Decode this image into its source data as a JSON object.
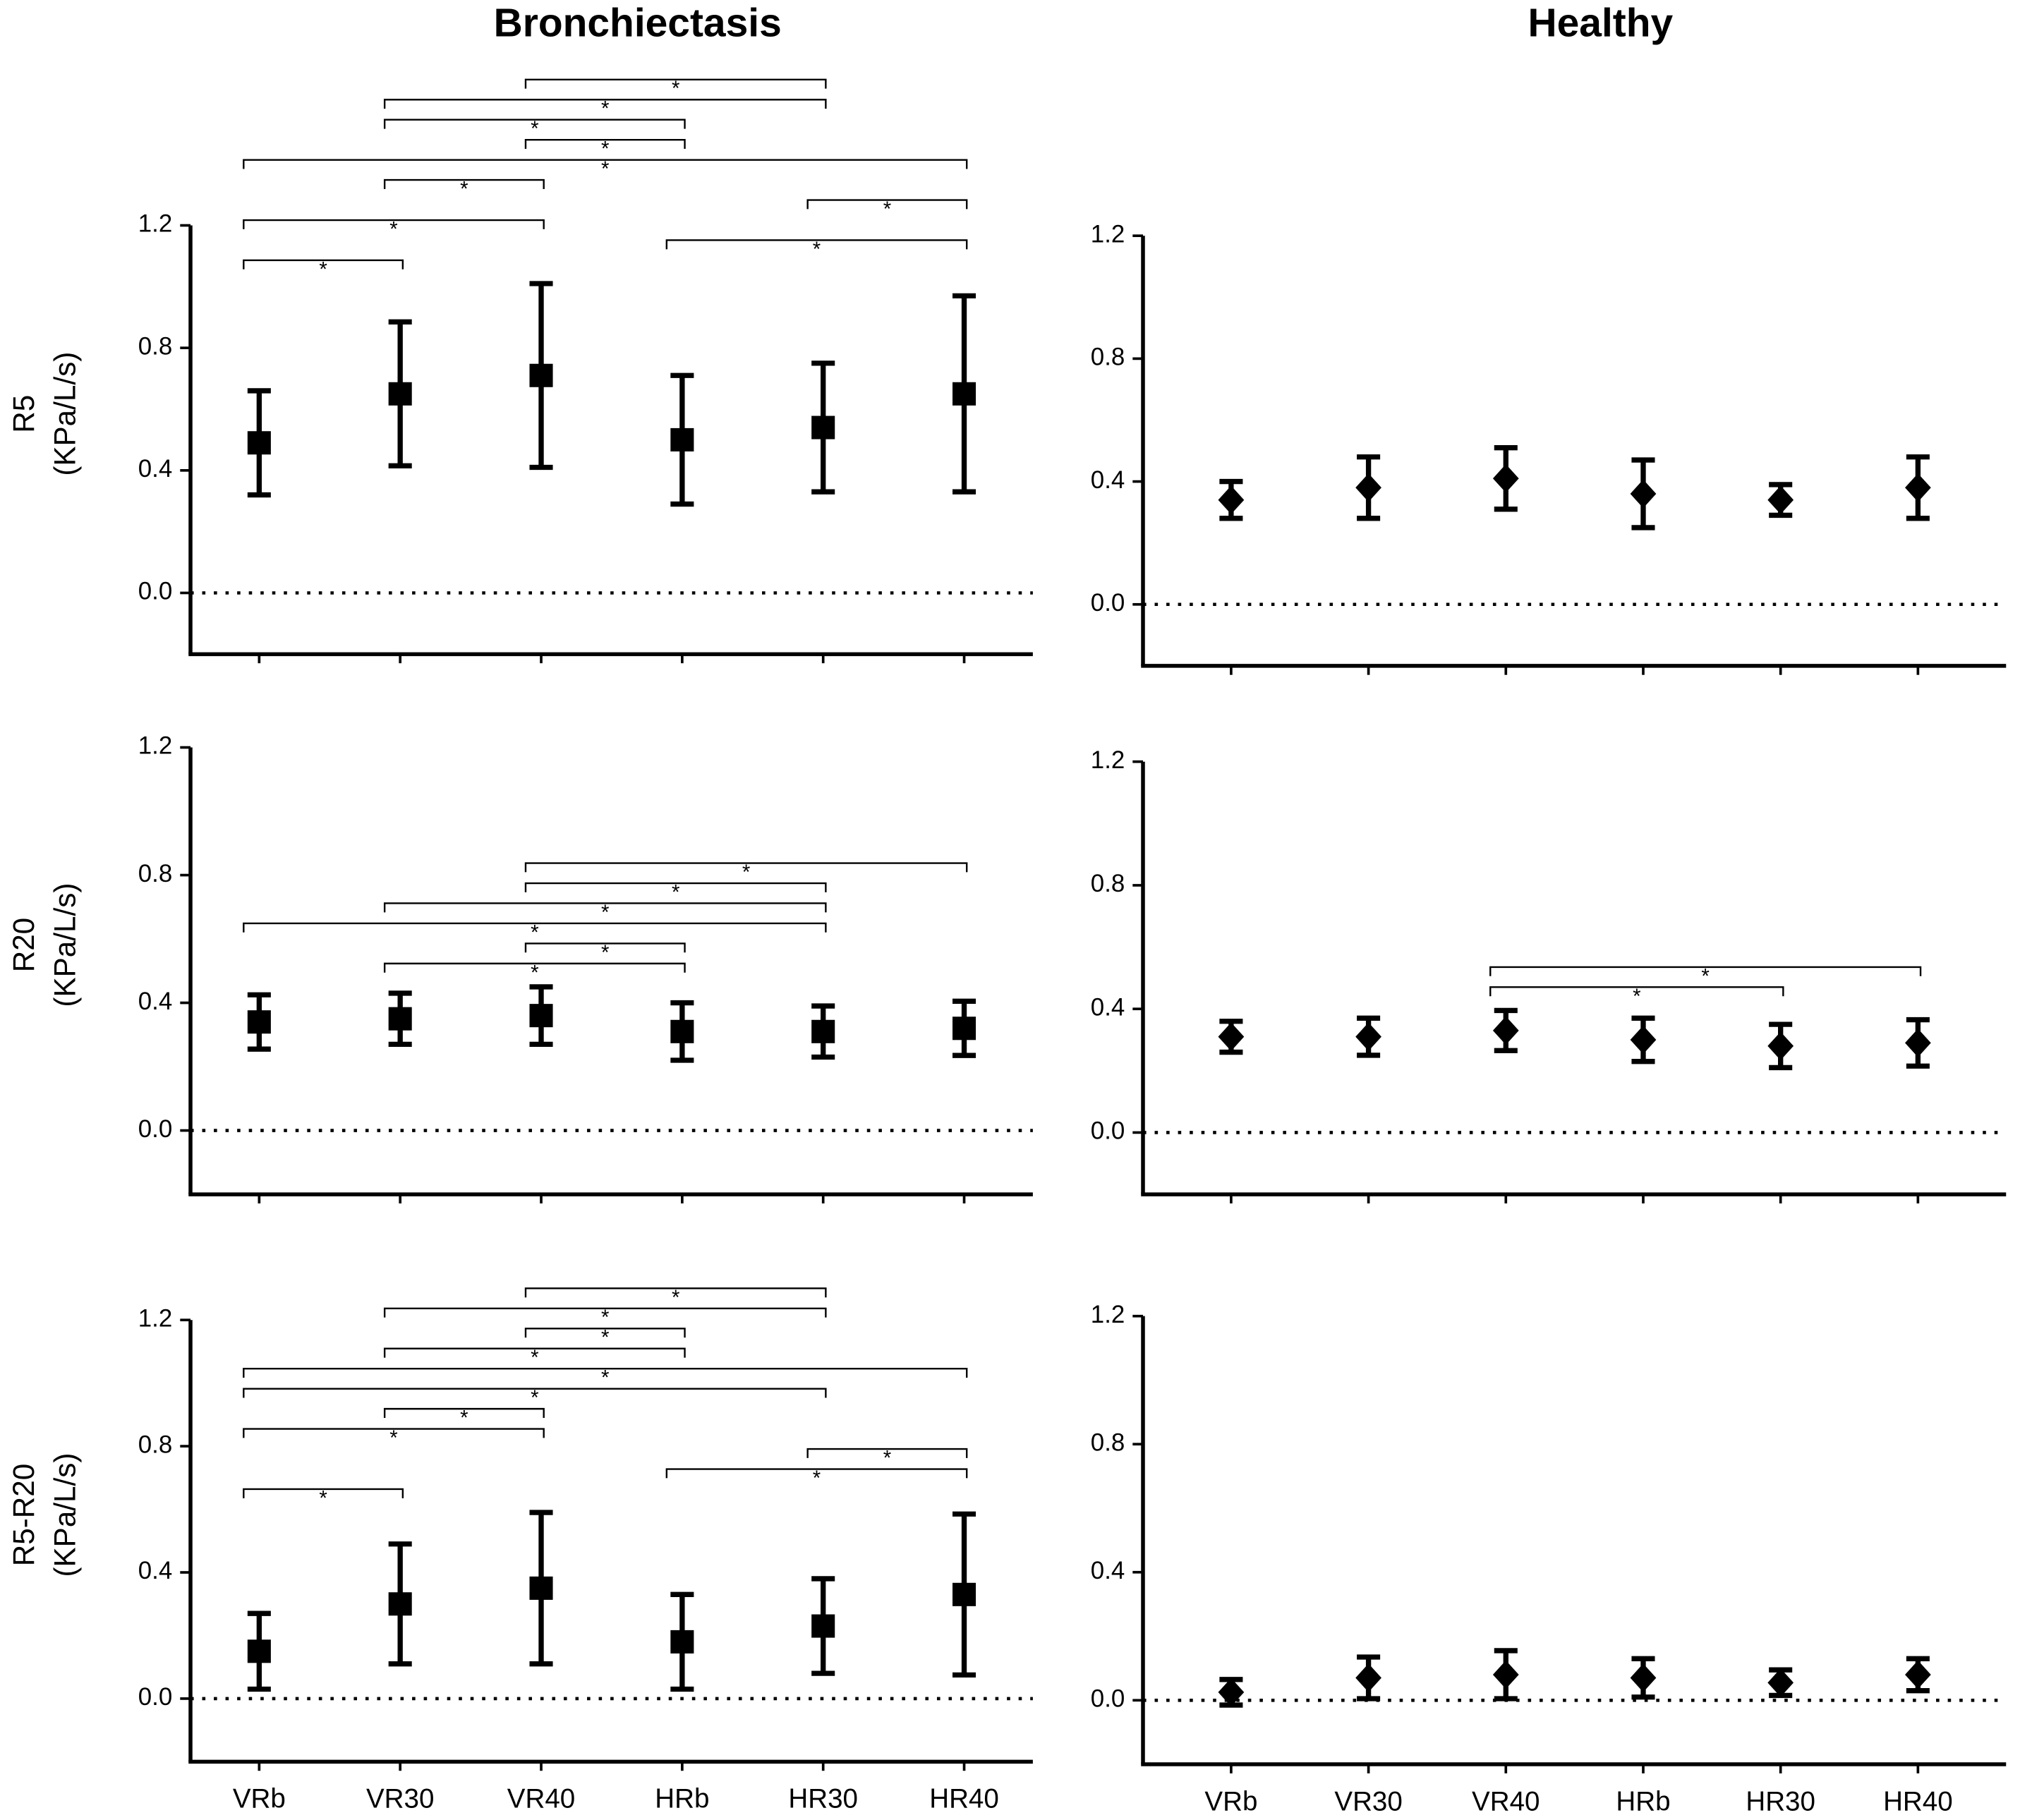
{
  "chart_data": [
    {
      "type": "errorbar",
      "title": "Bronchiectasis",
      "ylabel": [
        "R5",
        "(KPa/L/s)"
      ],
      "marker": "square",
      "color": "#000000",
      "zero_line": "dotted",
      "categories": [
        null,
        null,
        null,
        null,
        null,
        null
      ],
      "values": [
        0.49,
        0.65,
        0.71,
        0.5,
        0.54,
        0.65
      ],
      "errors": [
        0.17,
        0.235,
        0.3,
        0.21,
        0.21,
        0.32
      ],
      "ylim": [
        -0.2,
        1.2
      ],
      "yticks": [
        {
          "value": 0,
          "label": "0.0"
        },
        0.4,
        0.8,
        1.2
      ],
      "brackets": [
        {
          "between": [
            0,
            1
          ],
          "label": "*"
        },
        {
          "between": [
            3,
            5
          ],
          "label": "*"
        },
        {
          "between": [
            0,
            2
          ],
          "label": "*"
        },
        {
          "between": [
            4,
            5
          ],
          "label": "*"
        },
        {
          "between": [
            1,
            2
          ],
          "label": "*"
        },
        {
          "between": [
            0,
            5
          ],
          "label": "*"
        },
        {
          "between": [
            2,
            3
          ],
          "label": "*"
        },
        {
          "between": [
            1,
            3
          ],
          "label": "*"
        },
        {
          "between": [
            1,
            4
          ],
          "label": "*"
        },
        {
          "between": [
            2,
            4
          ],
          "label": "*"
        }
      ]
    },
    {
      "type": "errorbar",
      "title": "Healthy",
      "marker": "diamond",
      "color": "#000000",
      "zero_line": "dotted",
      "categories": [
        null,
        null,
        null,
        null,
        null,
        null
      ],
      "values": [
        0.34,
        0.38,
        0.41,
        0.36,
        0.34,
        0.38
      ],
      "errors": [
        0.06,
        0.1,
        0.1,
        0.11,
        0.05,
        0.1
      ],
      "ylim": [
        -0.2,
        1.2
      ],
      "yticks": [
        {
          "value": 0,
          "label": "0.0"
        },
        0.4,
        0.8,
        1.2
      ]
    },
    {
      "type": "errorbar",
      "ylabel": [
        "R20",
        "(KPa/L/s)"
      ],
      "marker": "square",
      "color": "#000000",
      "zero_line": "dotted",
      "categories": [
        null,
        null,
        null,
        null,
        null,
        null
      ],
      "values": [
        0.34,
        0.35,
        0.36,
        0.31,
        0.31,
        0.32
      ],
      "errors": [
        0.085,
        0.08,
        0.09,
        0.09,
        0.08,
        0.085
      ],
      "ylim": [
        -0.2,
        1.2
      ],
      "yticks": [
        {
          "value": 0,
          "label": "0.0"
        },
        0.4,
        0.8,
        1.2
      ],
      "brackets": [
        {
          "between": [
            1,
            3
          ],
          "label": "*"
        },
        {
          "between": [
            2,
            3
          ],
          "label": "*"
        },
        {
          "between": [
            0,
            4
          ],
          "label": "*"
        },
        {
          "between": [
            1,
            4
          ],
          "label": "*"
        },
        {
          "between": [
            2,
            4
          ],
          "label": "*"
        },
        {
          "between": [
            2,
            5
          ],
          "label": "*"
        }
      ]
    },
    {
      "type": "errorbar",
      "marker": "diamond",
      "color": "#000000",
      "zero_line": "dotted",
      "categories": [
        null,
        null,
        null,
        null,
        null,
        null
      ],
      "values": [
        0.31,
        0.31,
        0.33,
        0.3,
        0.28,
        0.29
      ],
      "errors": [
        0.05,
        0.06,
        0.065,
        0.07,
        0.07,
        0.075
      ],
      "ylim": [
        -0.2,
        1.2
      ],
      "yticks": [
        {
          "value": 0,
          "label": "0.0"
        },
        0.4,
        0.8,
        1.2
      ],
      "brackets": [
        {
          "between": [
            2,
            4
          ],
          "label": "*"
        },
        {
          "between": [
            2,
            5
          ],
          "label": "*"
        }
      ]
    },
    {
      "type": "errorbar",
      "ylabel": [
        "R5-R20",
        "(KPa/L/s)"
      ],
      "marker": "square",
      "color": "#000000",
      "zero_line": "dotted",
      "categories": [
        "VRb",
        "VR30",
        "VR40",
        "HRb",
        "HR30",
        "HR40"
      ],
      "values": [
        0.15,
        0.3,
        0.35,
        0.18,
        0.23,
        0.33
      ],
      "errors": [
        0.12,
        0.19,
        0.24,
        0.15,
        0.15,
        0.255
      ],
      "ylim": [
        -0.2,
        1.2
      ],
      "yticks": [
        {
          "value": 0,
          "label": "0.0"
        },
        0.4,
        0.8,
        1.2
      ],
      "brackets": [
        {
          "between": [
            0,
            1
          ],
          "label": "*"
        },
        {
          "between": [
            3,
            5
          ],
          "label": "*"
        },
        {
          "between": [
            4,
            5
          ],
          "label": "*"
        },
        {
          "between": [
            0,
            2
          ],
          "label": "*"
        },
        {
          "between": [
            1,
            2
          ],
          "label": "*"
        },
        {
          "between": [
            0,
            4
          ],
          "label": "*"
        },
        {
          "between": [
            0,
            5
          ],
          "label": "*"
        },
        {
          "between": [
            1,
            3
          ],
          "label": "*"
        },
        {
          "between": [
            2,
            3
          ],
          "label": "*"
        },
        {
          "between": [
            1,
            4
          ],
          "label": "*"
        },
        {
          "between": [
            2,
            4
          ],
          "label": "*"
        }
      ]
    },
    {
      "type": "errorbar",
      "marker": "diamond",
      "color": "#000000",
      "zero_line": "dotted",
      "categories": [
        "VRb",
        "VR30",
        "VR40",
        "HRb",
        "HR30",
        "HR40"
      ],
      "values": [
        0.025,
        0.07,
        0.08,
        0.07,
        0.055,
        0.08
      ],
      "errors": [
        0.04,
        0.065,
        0.075,
        0.06,
        0.04,
        0.05
      ],
      "ylim": [
        -0.2,
        1.2
      ],
      "yticks": [
        {
          "value": 0,
          "label": "0.0"
        },
        0.4,
        0.8,
        1.2
      ]
    }
  ]
}
